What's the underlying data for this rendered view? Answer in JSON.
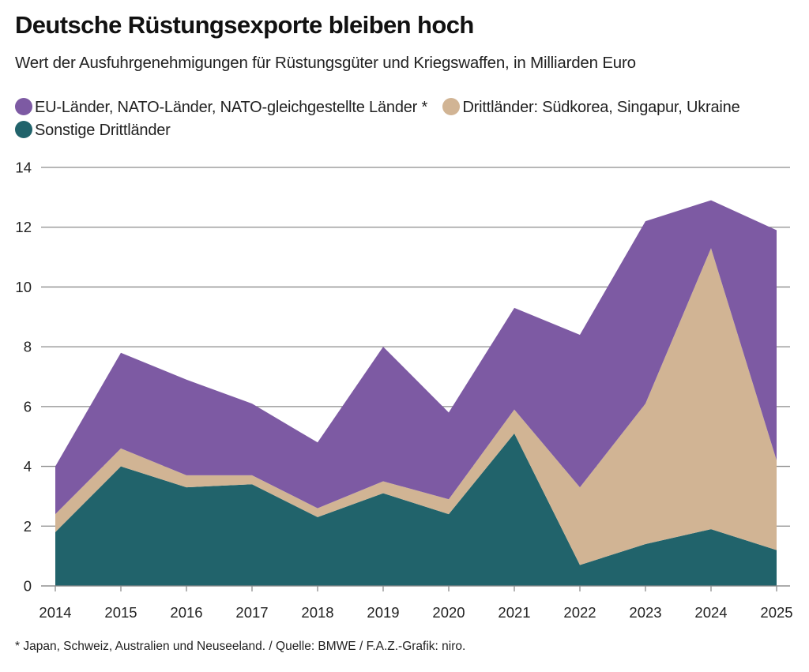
{
  "title": "Deutsche Rüstungsexporte bleiben hoch",
  "subtitle": "Wert der Ausfuhrgenehmigungen für Rüstungsgüter und Kriegswaffen, in Milliarden Euro",
  "legend": [
    {
      "label": "EU-Länder, NATO-Länder, NATO-gleichgestellte Länder *",
      "color": "#7d5aa3"
    },
    {
      "label": "Drittländer: Südkorea, Singapur, Ukraine",
      "color": "#d1b494"
    },
    {
      "label": "Sonstige Drittländer",
      "color": "#21636b"
    }
  ],
  "footnote": "* Japan, Schweiz, Australien und Neuseeland. / Quelle: BMWE / F.A.Z.-Grafik: niro.",
  "chart_data": {
    "type": "area",
    "stacked": true,
    "title": "Deutsche Rüstungsexporte bleiben hoch",
    "subtitle": "Wert der Ausfuhrgenehmigungen für Rüstungsgüter und Kriegswaffen, in Milliarden Euro",
    "xlabel": "",
    "ylabel": "",
    "x": [
      "2014",
      "2015",
      "2016",
      "2017",
      "2018",
      "2019",
      "2020",
      "2021",
      "2022",
      "2023",
      "2024",
      "2025"
    ],
    "ylim": [
      0,
      14
    ],
    "yticks": [
      0,
      2,
      4,
      6,
      8,
      10,
      12,
      14
    ],
    "grid": true,
    "legend_position": "top-left",
    "series": [
      {
        "name": "Sonstige Drittländer",
        "color": "#21636b",
        "values": [
          1.8,
          4.0,
          3.3,
          3.4,
          2.3,
          3.1,
          2.4,
          5.1,
          0.7,
          1.4,
          1.9,
          1.2
        ]
      },
      {
        "name": "Drittländer: Südkorea, Singapur, Ukraine",
        "color": "#d1b494",
        "values": [
          0.6,
          0.6,
          0.4,
          0.3,
          0.3,
          0.4,
          0.5,
          0.8,
          2.6,
          4.7,
          9.4,
          3.0
        ]
      },
      {
        "name": "EU-Länder, NATO-Länder, NATO-gleichgestellte Länder *",
        "color": "#7d5aa3",
        "values": [
          1.6,
          3.2,
          3.2,
          2.4,
          2.2,
          4.5,
          2.9,
          3.4,
          5.1,
          6.1,
          1.6,
          7.7
        ]
      }
    ],
    "totals": [
      4.0,
      7.8,
      6.9,
      6.1,
      4.8,
      8.0,
      5.8,
      9.3,
      8.4,
      12.2,
      12.9,
      11.9
    ]
  }
}
